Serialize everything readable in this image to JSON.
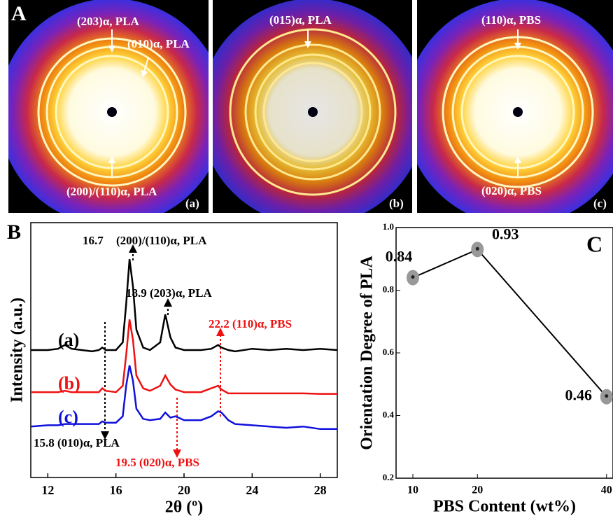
{
  "panel_a": {
    "label": "A",
    "images": [
      {
        "tag": "(a)",
        "annotations": [
          "(203)α, PLA",
          "(010)α, PLA",
          "(200)/(110)α, PLA"
        ]
      },
      {
        "tag": "(b)",
        "annotations": [
          "(015)α, PLA"
        ]
      },
      {
        "tag": "(c)",
        "annotations": [
          "(110)α, PBS",
          "(020)α, PBS"
        ]
      }
    ]
  },
  "chart_data": [
    {
      "type": "line",
      "panel": "B",
      "xlabel": "2θ (º)",
      "ylabel": "Intensity (a.u.)",
      "x": [
        11,
        12,
        12.6,
        13,
        13.4,
        14,
        14.6,
        15,
        15.2,
        15.4,
        16,
        16.4,
        16.6,
        16.8,
        17,
        17.2,
        17.6,
        18,
        18.6,
        18.9,
        19.2,
        19.5,
        20,
        21,
        21.6,
        22,
        22.2,
        22.6,
        23,
        24,
        25,
        26,
        27,
        28,
        29
      ],
      "xlim": [
        11,
        29
      ],
      "xticks": [
        12,
        16,
        20,
        24,
        28
      ],
      "ylim": [
        0,
        100
      ],
      "series": [
        {
          "name": "(a)",
          "color": "#000000",
          "values": [
            50,
            50,
            50.5,
            52,
            50.5,
            50,
            49.5,
            50,
            51,
            50,
            50,
            53,
            68,
            85.7,
            75,
            58,
            51,
            50,
            53,
            64,
            55,
            51,
            50,
            50,
            50.5,
            52,
            51,
            50,
            49.5,
            50.5,
            50,
            50.5,
            50,
            50.5,
            50
          ]
        },
        {
          "name": "(b)",
          "color": "#ee1111",
          "values": [
            33.5,
            33.5,
            33.5,
            34,
            33.5,
            33.5,
            33.5,
            33.5,
            35,
            34,
            33.5,
            36,
            48,
            62,
            54,
            40,
            35,
            34,
            36,
            40,
            36.5,
            34.5,
            33.5,
            33.5,
            35,
            36,
            34.5,
            33,
            33,
            33,
            33,
            33,
            33,
            32.8,
            32.8
          ]
        },
        {
          "name": "(c)",
          "color": "#1111dd",
          "values": [
            20,
            20.5,
            20.5,
            21,
            21,
            21,
            21,
            21,
            22,
            21.5,
            21.5,
            24,
            36,
            44,
            38,
            27,
            23,
            22.5,
            23,
            25.5,
            23.5,
            24,
            22.5,
            22.5,
            24,
            26,
            25.5,
            22.5,
            21,
            20.5,
            20,
            19.5,
            20,
            19,
            19
          ]
        }
      ],
      "annotations": [
        "16.7",
        "(200)/(110)α, PLA",
        "18.9 (203)α, PLA",
        "22.2 (110)α, PBS",
        "15.8 (010)α, PLA",
        "19.5 (020)α, PBS"
      ]
    },
    {
      "type": "scatter",
      "panel": "C",
      "xlabel": "PBS Content (wt%)",
      "ylabel": "Orientation Degree of PLA",
      "x": [
        10,
        20,
        40
      ],
      "values": [
        0.84,
        0.93,
        0.46
      ],
      "color": "#999999",
      "xlim": [
        7.4,
        41
      ],
      "xticks": [
        10,
        20,
        40
      ],
      "ylim": [
        0.2,
        1.0
      ],
      "yticks": [
        0.2,
        0.4,
        0.6,
        0.8,
        {
          "value": 1,
          "label": "1.0"
        }
      ]
    }
  ]
}
